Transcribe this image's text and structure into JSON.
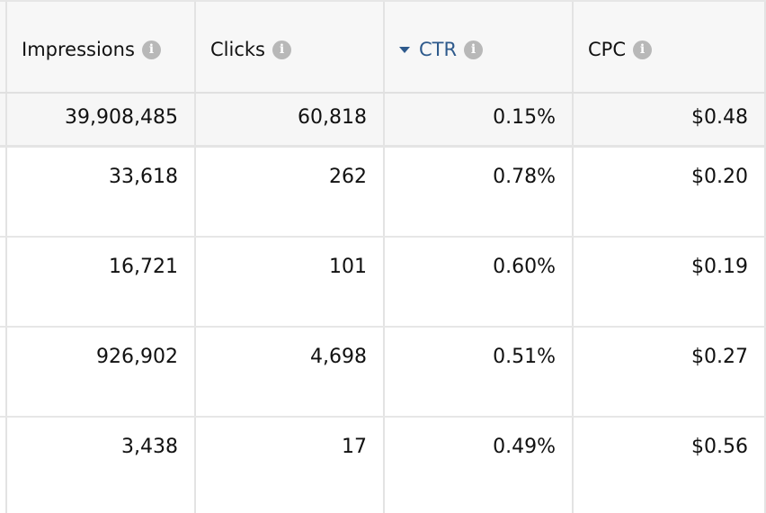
{
  "columns": [
    {
      "label": "Impressions",
      "sorted": false
    },
    {
      "label": "Clicks",
      "sorted": false
    },
    {
      "label": "CTR",
      "sorted": true
    },
    {
      "label": "CPC",
      "sorted": false
    }
  ],
  "icons": {
    "info": "info-icon",
    "sort": "sort-descending-caret"
  },
  "colors": {
    "sorted_header": "#2e5a8c",
    "info_icon": "#b8b8b8",
    "header_bg": "#f7f7f7"
  },
  "totals": {
    "impressions": "39,908,485",
    "clicks": "60,818",
    "ctr": "0.15%",
    "cpc": "$0.48"
  },
  "rows": [
    {
      "impressions": "33,618",
      "clicks": "262",
      "ctr": "0.78%",
      "cpc": "$0.20"
    },
    {
      "impressions": "16,721",
      "clicks": "101",
      "ctr": "0.60%",
      "cpc": "$0.19"
    },
    {
      "impressions": "926,902",
      "clicks": "4,698",
      "ctr": "0.51%",
      "cpc": "$0.27"
    },
    {
      "impressions": "3,438",
      "clicks": "17",
      "ctr": "0.49%",
      "cpc": "$0.56"
    }
  ]
}
